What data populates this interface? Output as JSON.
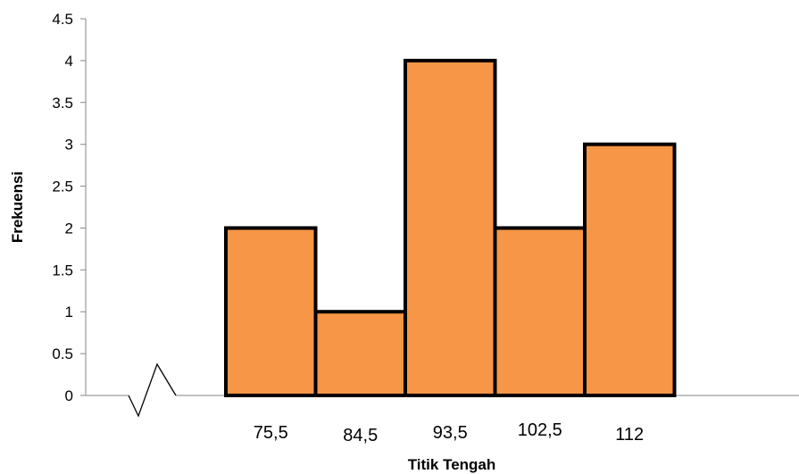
{
  "chart_data": {
    "type": "bar",
    "title": "",
    "xlabel": "Titik Tengah",
    "ylabel": "Frekuensi",
    "categories": [
      "75,5",
      "84,5",
      "93,5",
      "102,5",
      "112"
    ],
    "values": [
      2,
      1,
      4,
      2,
      3
    ],
    "ylim": [
      0,
      4.5
    ],
    "yticks": [
      "0",
      "0.5",
      "1",
      "1.5",
      "2",
      "2.5",
      "3",
      "3.5",
      "4",
      "4.5"
    ],
    "grid": false,
    "legend": "none",
    "axis_break": true,
    "bar_color": "#F79646",
    "bar_edge_color": "#000000"
  }
}
